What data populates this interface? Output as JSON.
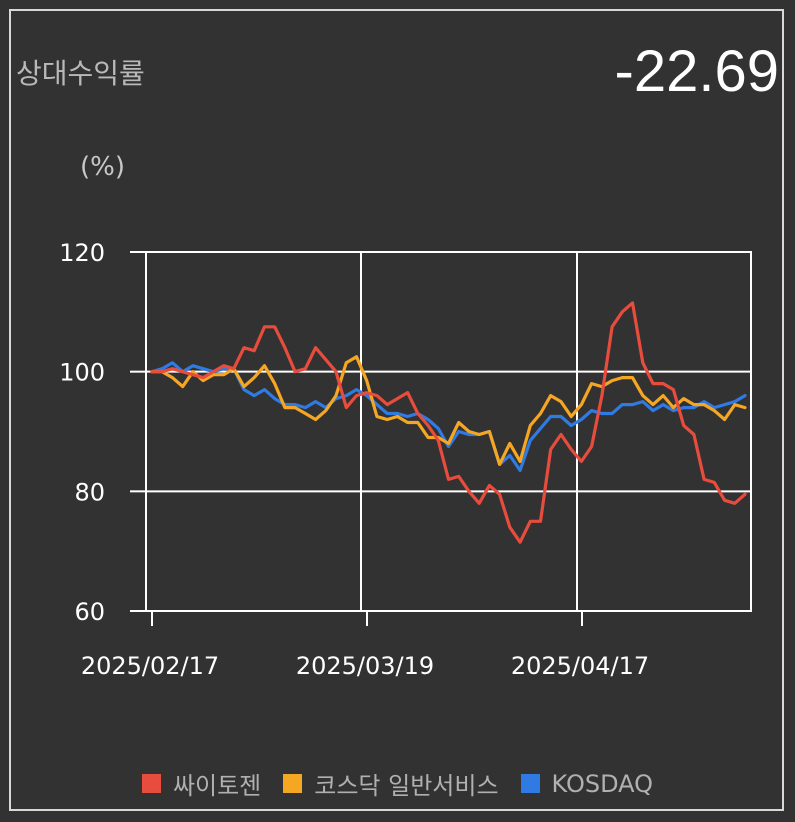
{
  "header": {
    "title": "상대수익률",
    "value": "-22.69",
    "unit": "(%)"
  },
  "colors": {
    "background": "#323232",
    "grid": "#ffffff",
    "series1": "#e84c3d",
    "series2": "#f5a623",
    "series3": "#2f7be3"
  },
  "chart_data": {
    "type": "line",
    "ylim": [
      60,
      120
    ],
    "yticks": [
      "60",
      "80",
      "100",
      "120"
    ],
    "xticks": [
      "2025/02/17",
      "2025/03/19",
      "2025/04/17"
    ],
    "xrange": [
      "2025/02/17",
      "2025/05/15"
    ],
    "grid": true,
    "legend_position": "bottom",
    "series": [
      {
        "name": "싸이토젠",
        "values": [
          100,
          100,
          100.5,
          100,
          99.5,
          99,
          100,
          101,
          100.5,
          104,
          103.5,
          107.5,
          107.5,
          104,
          100,
          100.5,
          104,
          102,
          100,
          94,
          96,
          96.5,
          96,
          94.5,
          95.5,
          96.5,
          93,
          91,
          88.5,
          82,
          82.5,
          80,
          78,
          81,
          79.5,
          74,
          71.5,
          75,
          75,
          87,
          89.5,
          87,
          85,
          87.5,
          96,
          107.5,
          110,
          111.5,
          101.5,
          98,
          98,
          97,
          91,
          89.5,
          82,
          81.5,
          78.5,
          78,
          79.5
        ]
      },
      {
        "name": "코스닥 일반서비스",
        "values": [
          100,
          100,
          99,
          97.5,
          100,
          98.5,
          99.5,
          99.5,
          100.5,
          97.5,
          99,
          101,
          98,
          94,
          94,
          93,
          92,
          93.5,
          96,
          101.5,
          102.5,
          98.5,
          92.5,
          92,
          92.5,
          91.5,
          91.5,
          89,
          89,
          88,
          91.5,
          90,
          89.5,
          90,
          84.5,
          88,
          85,
          91,
          93,
          96,
          95,
          92.5,
          94.5,
          98,
          97.5,
          98.5,
          99,
          99,
          96,
          94.5,
          96,
          94,
          95.5,
          94.5,
          94.5,
          93.5,
          92,
          94.5,
          94
        ]
      },
      {
        "name": "KOSDAQ",
        "values": [
          100,
          100.5,
          101.5,
          100,
          101,
          100.5,
          100,
          100.5,
          100.5,
          97,
          96,
          97,
          95.5,
          94.5,
          94.5,
          94,
          95,
          94,
          95.5,
          96,
          97,
          96,
          94.5,
          93,
          93,
          92.5,
          93,
          92,
          90.5,
          87.5,
          90,
          89.5,
          89.5,
          90,
          84.5,
          86,
          83.5,
          88.5,
          90.5,
          92.5,
          92.5,
          91,
          92,
          93.5,
          93,
          93,
          94.5,
          94.5,
          95,
          93.5,
          94.5,
          93.5,
          94,
          94,
          95,
          94,
          94.5,
          95,
          96
        ]
      }
    ]
  }
}
